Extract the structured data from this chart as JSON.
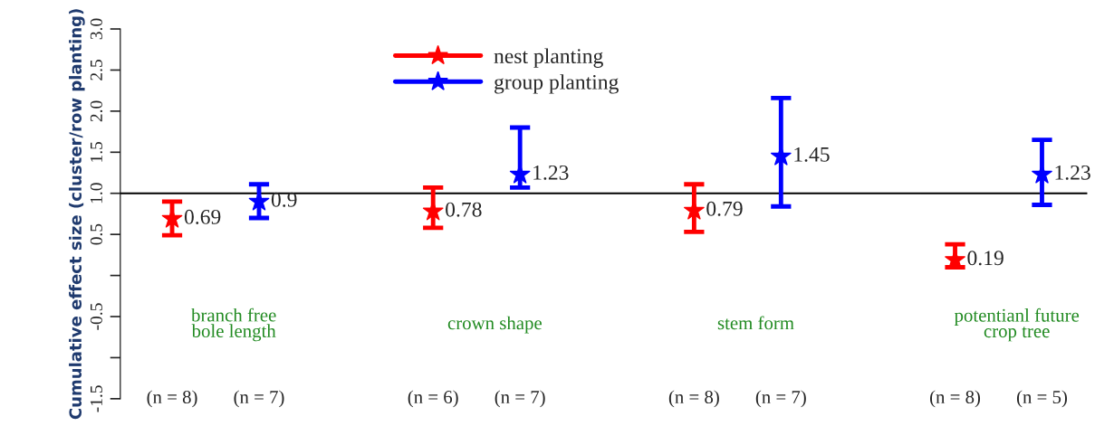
{
  "chart_data": {
    "type": "scatter",
    "ylabel": "Cumulative effect size (cluster/row planting)",
    "categories": [
      "branch free\nbole length",
      "crown shape",
      "stem form",
      "potentianl future\ncrop tree"
    ],
    "series": [
      {
        "name": "nest planting",
        "color": "#ff0000",
        "values": [
          0.69,
          0.78,
          0.79,
          0.19
        ],
        "errors": [
          [
            0.49,
            0.9
          ],
          [
            0.58,
            1.07
          ],
          [
            0.53,
            1.11
          ],
          [
            0.1,
            0.38
          ]
        ],
        "value_labels": [
          "0.69",
          "0.78",
          "0.79",
          "0.19"
        ]
      },
      {
        "name": "group planting",
        "color": "#0000ff",
        "values": [
          0.9,
          1.23,
          1.45,
          1.23
        ],
        "errors": [
          [
            0.7,
            1.11
          ],
          [
            1.07,
            1.8
          ],
          [
            0.84,
            2.16
          ],
          [
            0.86,
            1.65
          ]
        ],
        "value_labels": [
          "0.9",
          "1.23",
          "1.45",
          "1.23"
        ]
      }
    ],
    "annotations": [
      "(n = 8)",
      "(n = 6)",
      "(n = 8)",
      "(n = 8)",
      "(n = 7)",
      "(n = 7)",
      "(n = 7)",
      "(n = 5)"
    ],
    "ylim": [
      -1.5,
      3.0
    ],
    "yticks": [
      {
        "value": -1.5,
        "label": "-1.5"
      },
      {
        "value": -1.0,
        "label": null
      },
      {
        "value": -0.5,
        "label": "-0.5"
      },
      {
        "value": 0,
        "label": null
      },
      0.5,
      {
        "value": 1.0,
        "label": "1.0"
      },
      1.5,
      {
        "value": 2.0,
        "label": "2.0"
      },
      2.5,
      {
        "value": 3.0,
        "label": "3.0"
      }
    ],
    "ref_lines": [
      {
        "axis": "y",
        "value": 1.0,
        "color": "#000000"
      }
    ],
    "tick_labels": "y",
    "grid": false,
    "legend": "top",
    "marker": "star"
  }
}
